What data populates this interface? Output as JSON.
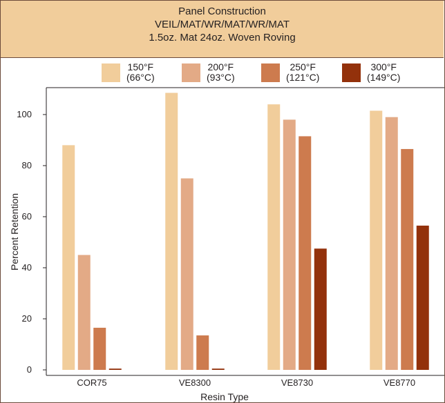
{
  "header": {
    "line1": "Panel Construction",
    "line2": "VEIL/MAT/WR/MAT/WR/MAT",
    "line3": "1.5oz. Mat 24oz. Woven Roving"
  },
  "legend": [
    {
      "temp_f": "150°F",
      "temp_c": "(66°C)",
      "color": "#f1cd9b"
    },
    {
      "temp_f": "200°F",
      "temp_c": "(93°C)",
      "color": "#e3aa86"
    },
    {
      "temp_f": "250°F",
      "temp_c": "(121°C)",
      "color": "#cd7b4e"
    },
    {
      "temp_f": "300°F",
      "temp_c": "(149°C)",
      "color": "#93310b"
    }
  ],
  "chart_data": {
    "type": "bar",
    "title": "Panel Construction VEIL/MAT/WR/MAT/WR/MAT 1.5oz. Mat 24oz. Woven Roving",
    "xlabel": "Resin Type",
    "ylabel": "Percent Retention",
    "categories": [
      "COR75",
      "VE8300",
      "VE8730",
      "VE8770"
    ],
    "series": [
      {
        "name": "150°F (66°C)",
        "color": "#f1cd9b",
        "values": [
          88,
          108.5,
          104,
          101.5
        ]
      },
      {
        "name": "200°F (93°C)",
        "color": "#e3aa86",
        "values": [
          45,
          75,
          98,
          99
        ]
      },
      {
        "name": "250°F (121°C)",
        "color": "#cd7b4e",
        "values": [
          16.5,
          13.5,
          91.5,
          86.5
        ]
      },
      {
        "name": "300°F (149°C)",
        "color": "#93310b",
        "values": [
          0.5,
          0.5,
          47.5,
          56.5
        ]
      }
    ],
    "yticks": [
      0,
      20,
      40,
      60,
      80,
      100
    ],
    "ylim": [
      -2,
      113
    ],
    "grid": false,
    "legend_position": "top"
  }
}
